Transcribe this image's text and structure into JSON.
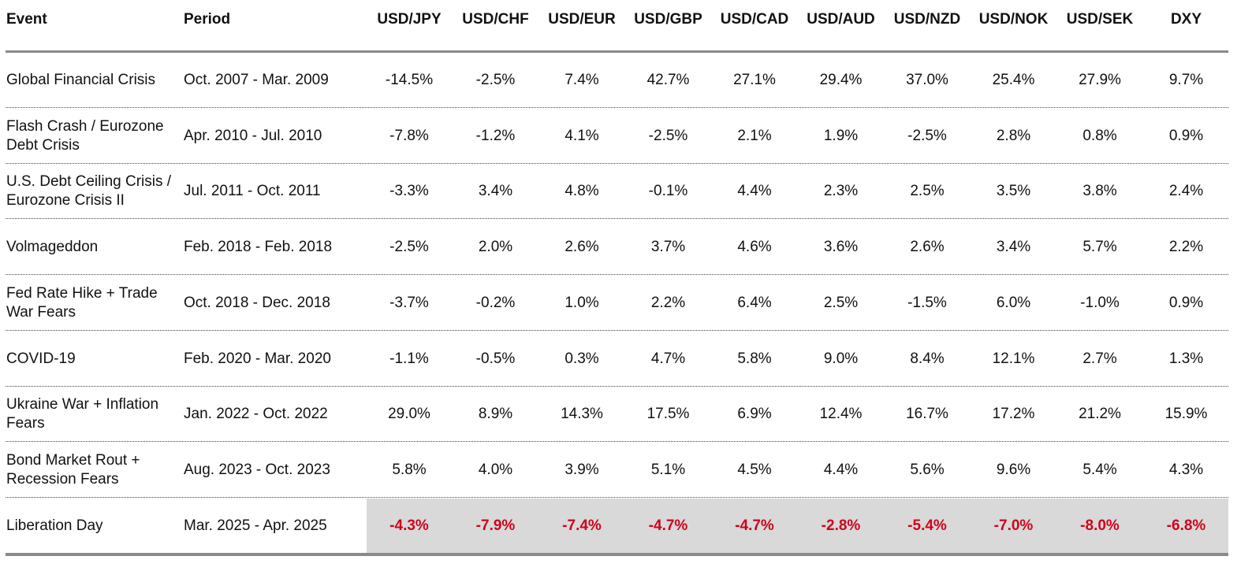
{
  "table": {
    "columns": [
      "Event",
      "Period",
      "USD/JPY",
      "USD/CHF",
      "USD/EUR",
      "USD/GBP",
      "USD/CAD",
      "USD/AUD",
      "USD/NZD",
      "USD/NOK",
      "USD/SEK",
      "DXY"
    ],
    "rows": [
      [
        "Global Financial Crisis",
        "Oct. 2007 - Mar. 2009",
        "-14.5%",
        "-2.5%",
        "7.4%",
        "42.7%",
        "27.1%",
        "29.4%",
        "37.0%",
        "25.4%",
        "27.9%",
        "9.7%"
      ],
      [
        "Flash Crash / Eurozone Debt Crisis",
        "Apr. 2010 - Jul. 2010",
        "-7.8%",
        "-1.2%",
        "4.1%",
        "-2.5%",
        "2.1%",
        "1.9%",
        "-2.5%",
        "2.8%",
        "0.8%",
        "0.9%"
      ],
      [
        "U.S. Debt Ceiling Crisis / Eurozone Crisis II",
        "Jul. 2011 - Oct. 2011",
        "-3.3%",
        "3.4%",
        "4.8%",
        "-0.1%",
        "4.4%",
        "2.3%",
        "2.5%",
        "3.5%",
        "3.8%",
        "2.4%"
      ],
      [
        "Volmageddon",
        "Feb. 2018 - Feb. 2018",
        "-2.5%",
        "2.0%",
        "2.6%",
        "3.7%",
        "4.6%",
        "3.6%",
        "2.6%",
        "3.4%",
        "5.7%",
        "2.2%"
      ],
      [
        "Fed Rate Hike + Trade War Fears",
        "Oct. 2018 - Dec. 2018",
        "-3.7%",
        "-0.2%",
        "1.0%",
        "2.2%",
        "6.4%",
        "2.5%",
        "-1.5%",
        "6.0%",
        "-1.0%",
        "0.9%"
      ],
      [
        "COVID-19",
        "Feb. 2020 - Mar. 2020",
        "-1.1%",
        "-0.5%",
        "0.3%",
        "4.7%",
        "5.8%",
        "9.0%",
        "8.4%",
        "12.1%",
        "2.7%",
        "1.3%"
      ],
      [
        "Ukraine War + Inflation Fears",
        "Jan. 2022 - Oct. 2022",
        "29.0%",
        "8.9%",
        "14.3%",
        "17.5%",
        "6.9%",
        "12.4%",
        "16.7%",
        "17.2%",
        "21.2%",
        "15.9%"
      ],
      [
        "Bond Market Rout + Recession Fears",
        "Aug. 2023 - Oct. 2023",
        "5.8%",
        "4.0%",
        "3.9%",
        "5.1%",
        "4.5%",
        "4.4%",
        "5.6%",
        "9.6%",
        "5.4%",
        "4.3%"
      ],
      [
        "Liberation Day",
        "Mar. 2025 - Apr. 2025",
        "-4.3%",
        "-7.9%",
        "-7.4%",
        "-4.7%",
        "-4.7%",
        "-2.8%",
        "-5.4%",
        "-7.0%",
        "-8.0%",
        "-6.8%"
      ]
    ]
  }
}
